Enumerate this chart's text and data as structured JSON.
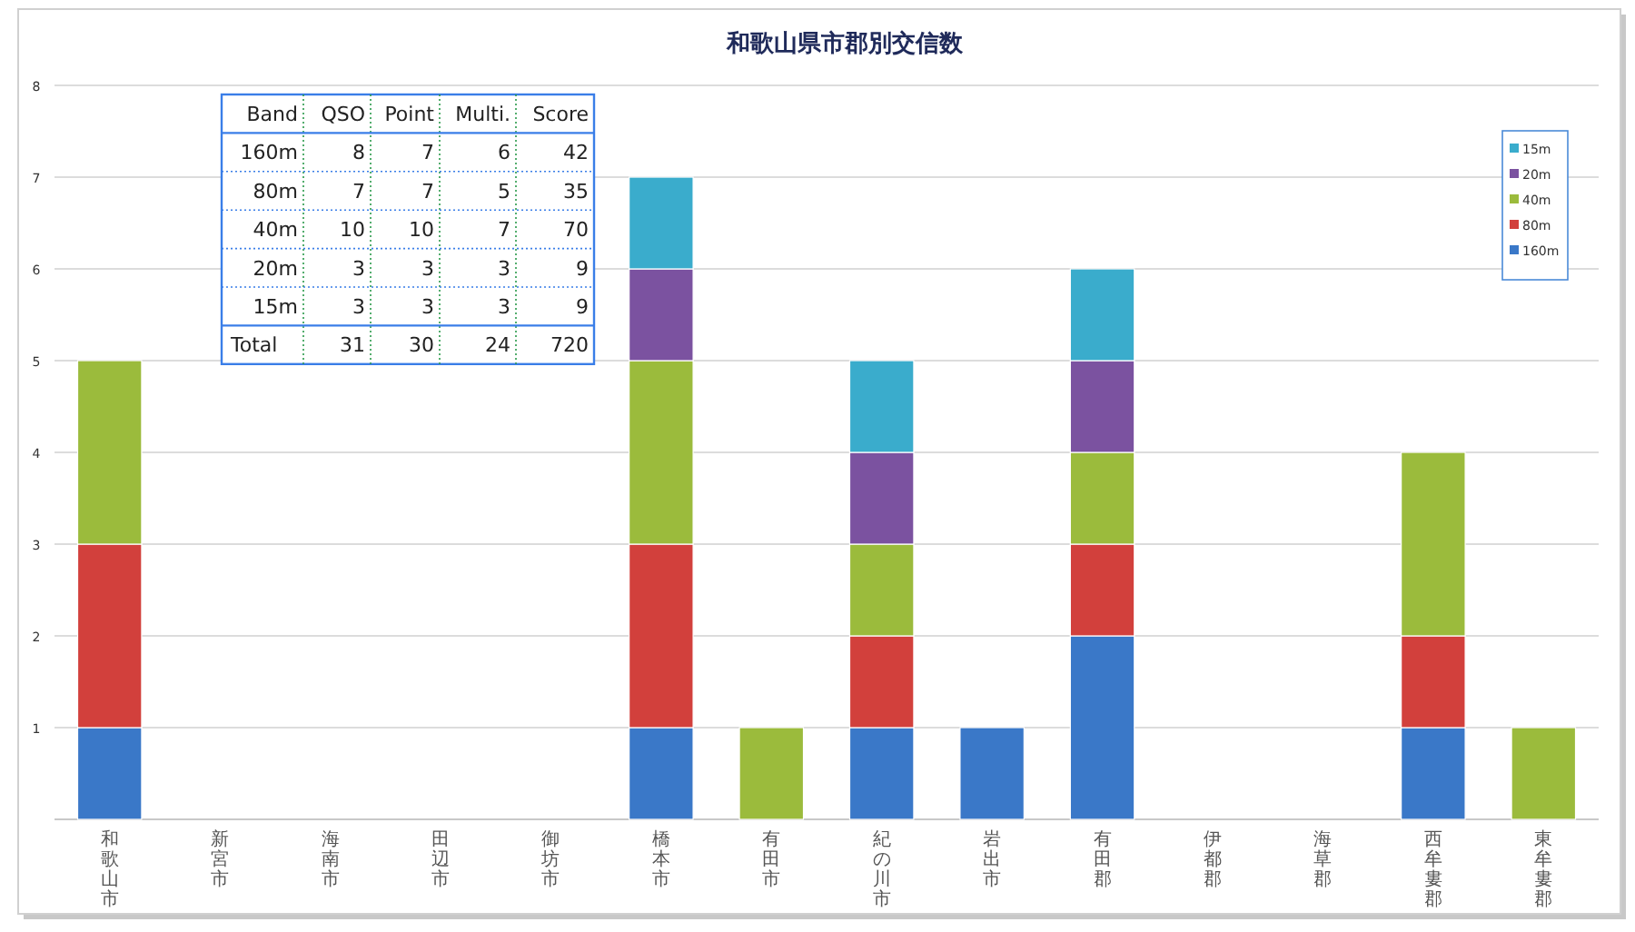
{
  "chart_data": [
    {
      "type": "bar",
      "title": "和歌山県市郡別交信数",
      "stacked": true,
      "categories": [
        "和歌山市",
        "新宮市",
        "海南市",
        "田辺市",
        "御坊市",
        "橋本市",
        "有田市",
        "紀の川市",
        "岩出市",
        "有田郡",
        "伊都郡",
        "海草郡",
        "西牟婁郡",
        "東牟婁郡"
      ],
      "series": [
        {
          "name": "160m",
          "color": "#3a78c8",
          "values": [
            1,
            null,
            null,
            null,
            null,
            1,
            null,
            1,
            1,
            2,
            null,
            null,
            1,
            null
          ]
        },
        {
          "name": "80m",
          "color": "#d2403c",
          "values": [
            2,
            null,
            null,
            null,
            null,
            2,
            null,
            1,
            null,
            1,
            null,
            null,
            1,
            null
          ]
        },
        {
          "name": "40m",
          "color": "#9bbb3c",
          "values": [
            2,
            null,
            null,
            null,
            null,
            2,
            1,
            1,
            null,
            1,
            null,
            null,
            2,
            1
          ]
        },
        {
          "name": "20m",
          "color": "#7b52a0",
          "values": [
            null,
            null,
            null,
            null,
            null,
            1,
            null,
            1,
            null,
            1,
            null,
            null,
            null,
            null
          ]
        },
        {
          "name": "15m",
          "color": "#3aaccc",
          "values": [
            null,
            null,
            null,
            null,
            null,
            1,
            null,
            1,
            null,
            1,
            null,
            null,
            null,
            null
          ]
        }
      ],
      "ylim": [
        0,
        8
      ],
      "yticks": [
        1,
        2,
        3,
        4,
        5,
        6,
        7,
        8
      ],
      "grid": "y",
      "legend": "top right"
    },
    {
      "type": "heatmap",
      "annotations": [
        "Band"
      ],
      "data_labels": true,
      "categories": [
        "QSO",
        "Point",
        "Multi.",
        "Score"
      ],
      "y_categories": [
        "160m",
        "80m",
        "40m",
        "20m",
        "15m",
        "Total"
      ],
      "cells": [
        [
          8,
          7,
          6,
          42
        ],
        [
          7,
          7,
          5,
          35
        ],
        [
          10,
          10,
          7,
          70
        ],
        [
          3,
          3,
          3,
          9
        ],
        [
          3,
          3,
          3,
          9
        ],
        [
          31,
          30,
          24,
          720
        ]
      ]
    }
  ]
}
